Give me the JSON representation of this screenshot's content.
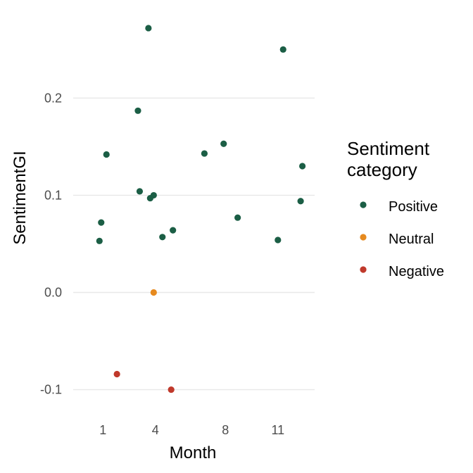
{
  "chart_data": {
    "type": "scatter",
    "title": "",
    "xlabel": "Month",
    "ylabel": "SentimentGI",
    "xlim": [
      -0.7,
      13.1
    ],
    "ylim": [
      -0.13,
      0.285
    ],
    "x_ticks": [
      {
        "value": 1,
        "label": "1"
      },
      {
        "value": 4,
        "label": "4"
      },
      {
        "value": 8,
        "label": "8"
      },
      {
        "value": 11,
        "label": "11"
      }
    ],
    "y_ticks": [
      {
        "value": -0.1,
        "label": "-0.1"
      },
      {
        "value": 0.0,
        "label": "0.0"
      },
      {
        "value": 0.1,
        "label": "0.1"
      },
      {
        "value": 0.2,
        "label": "0.2"
      }
    ],
    "grid": "horizontal",
    "legend": {
      "title": [
        "Sentiment",
        "category"
      ],
      "placement": "right"
    },
    "series": [
      {
        "name": "Positive",
        "color": "#1b5e45",
        "points": [
          {
            "x": 0.8,
            "y": 0.053
          },
          {
            "x": 0.9,
            "y": 0.072
          },
          {
            "x": 1.2,
            "y": 0.142
          },
          {
            "x": 3.0,
            "y": 0.187
          },
          {
            "x": 3.1,
            "y": 0.104
          },
          {
            "x": 3.6,
            "y": 0.272
          },
          {
            "x": 3.7,
            "y": 0.097
          },
          {
            "x": 3.9,
            "y": 0.1
          },
          {
            "x": 4.4,
            "y": 0.057
          },
          {
            "x": 5.0,
            "y": 0.064
          },
          {
            "x": 6.8,
            "y": 0.143
          },
          {
            "x": 7.9,
            "y": 0.153
          },
          {
            "x": 8.7,
            "y": 0.077
          },
          {
            "x": 11.0,
            "y": 0.054
          },
          {
            "x": 11.3,
            "y": 0.25
          },
          {
            "x": 12.3,
            "y": 0.094
          },
          {
            "x": 12.4,
            "y": 0.13
          }
        ]
      },
      {
        "name": "Neutral",
        "color": "#e68a1f",
        "points": [
          {
            "x": 3.9,
            "y": 0.0
          }
        ]
      },
      {
        "name": "Negative",
        "color": "#c0392b",
        "points": [
          {
            "x": 1.8,
            "y": -0.084
          },
          {
            "x": 4.9,
            "y": -0.1
          }
        ]
      }
    ]
  }
}
